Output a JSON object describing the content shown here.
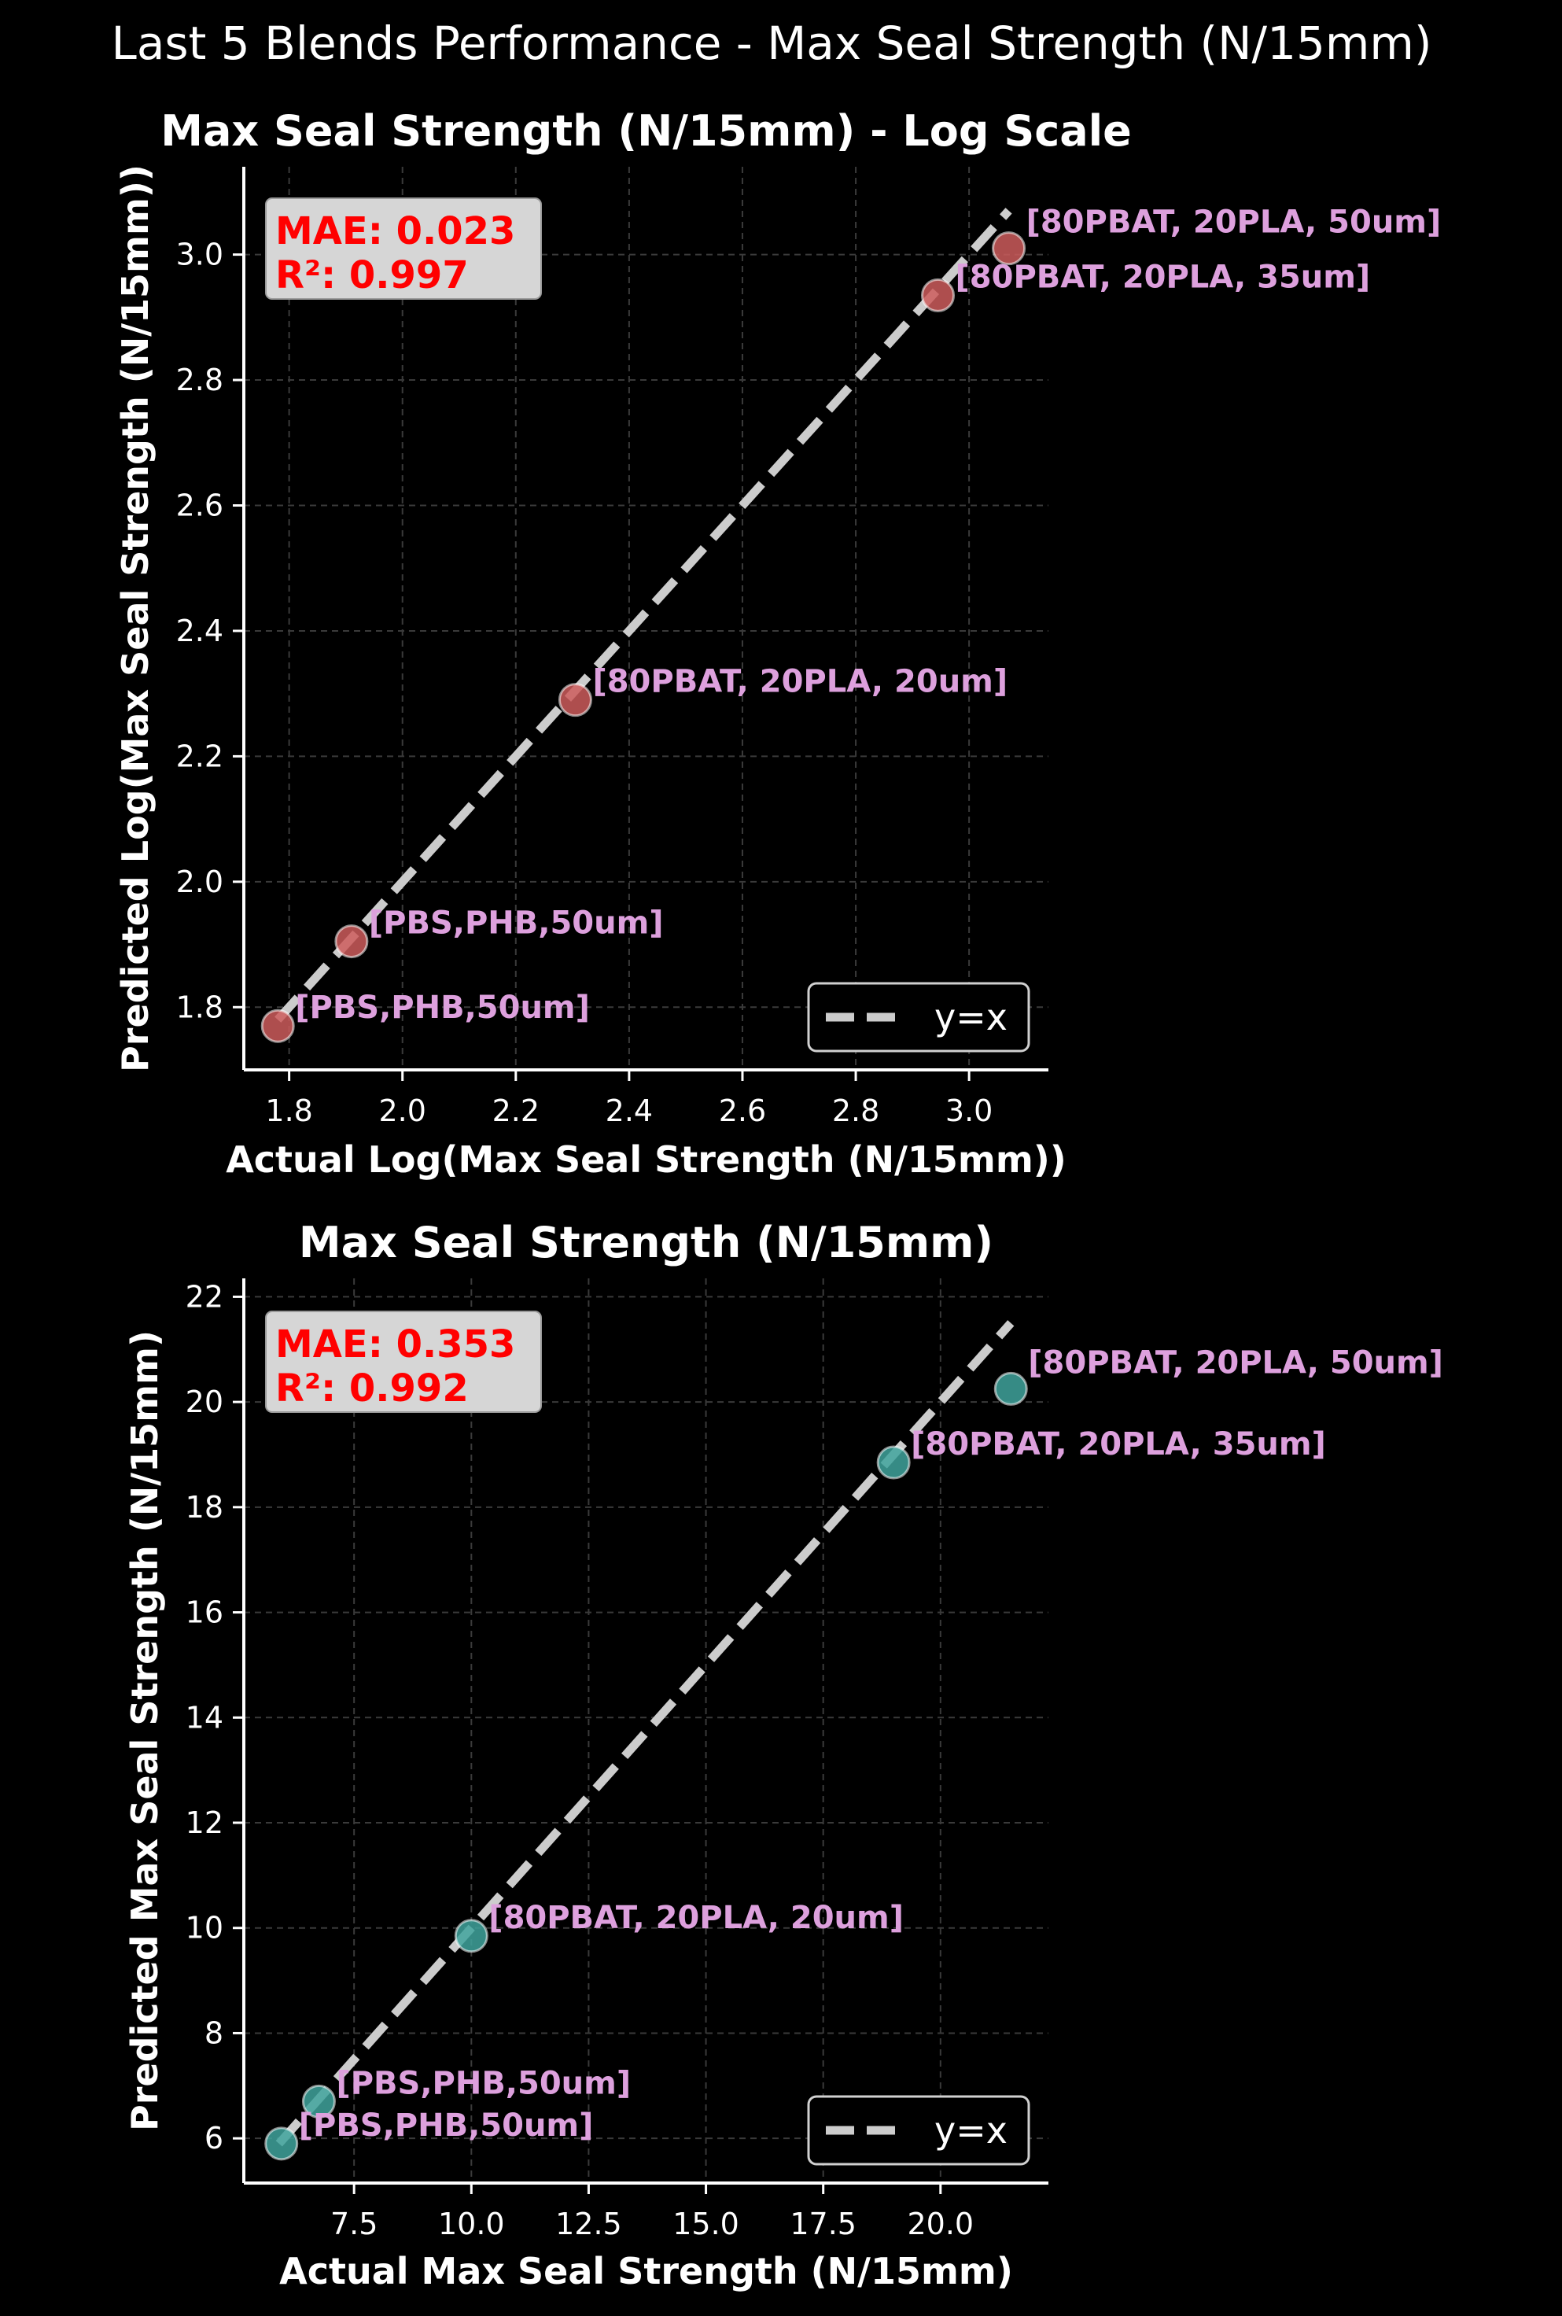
{
  "figure": {
    "suptitle": "Last 5 Blends Performance - Max Seal Strength (N/15mm)"
  },
  "colors": {
    "background": "#000000",
    "log_point": "#cd5c5c",
    "lin_point": "#3fa39c",
    "label": "#dda0dd",
    "metric": "#ff0000",
    "identity_line": "#cccccc"
  },
  "chart_data": [
    {
      "type": "scatter",
      "title": "Max Seal Strength (N/15mm) - Log Scale",
      "xlabel": "Actual Log(Max Seal Strength (N/15mm))",
      "ylabel": "Predicted Log(Max Seal Strength (N/15mm))",
      "xlim": [
        1.72,
        3.14
      ],
      "ylim": [
        1.7,
        3.14
      ],
      "xticks": [
        1.8,
        2.0,
        2.2,
        2.4,
        2.6,
        2.8,
        3.0
      ],
      "yticks": [
        1.8,
        2.0,
        2.2,
        2.4,
        2.6,
        2.8,
        3.0
      ],
      "tick_decimals": 1,
      "grid": true,
      "legend": {
        "location": "lower-right",
        "label": "y=x"
      },
      "identity_line": [
        1.78,
        3.07
      ],
      "metrics": {
        "mae": "MAE: 0.023",
        "r2": "R²: 0.997"
      },
      "points": [
        {
          "x": 1.78,
          "y": 1.77,
          "label": "[PBS,PHB,50um]"
        },
        {
          "x": 1.91,
          "y": 1.905,
          "label": "[PBS,PHB,50um]"
        },
        {
          "x": 2.305,
          "y": 2.29,
          "label": "[80PBAT, 20PLA, 20um]"
        },
        {
          "x": 2.945,
          "y": 2.935,
          "label": "[80PBAT, 20PLA, 35um]"
        },
        {
          "x": 3.07,
          "y": 3.01,
          "label": "[80PBAT, 20PLA, 50um]"
        }
      ]
    },
    {
      "type": "scatter",
      "title": "Max Seal Strength (N/15mm)",
      "xlabel": "Actual Max Seal Strength (N/15mm)",
      "ylabel": "Predicted Max Seal Strength (N/15mm)",
      "xlim": [
        5.15,
        22.3
      ],
      "ylim": [
        5.15,
        22.35
      ],
      "xticks": [
        7.5,
        10.0,
        12.5,
        15.0,
        17.5,
        20.0
      ],
      "yticks": [
        6,
        8,
        10,
        12,
        14,
        16,
        18,
        20,
        22
      ],
      "tick_decimals": [
        1,
        0
      ],
      "grid": true,
      "legend": {
        "location": "lower-right",
        "label": "y=x"
      },
      "identity_line": [
        5.9,
        21.5
      ],
      "metrics": {
        "mae": "MAE: 0.353",
        "r2": "R²: 0.992"
      },
      "points": [
        {
          "x": 5.95,
          "y": 5.9,
          "label": "[PBS,PHB,50um]"
        },
        {
          "x": 6.75,
          "y": 6.7,
          "label": "[PBS,PHB,50um]"
        },
        {
          "x": 10.0,
          "y": 9.85,
          "label": "[80PBAT, 20PLA, 20um]"
        },
        {
          "x": 19.0,
          "y": 18.85,
          "label": "[80PBAT, 20PLA, 35um]"
        },
        {
          "x": 21.5,
          "y": 20.25,
          "label": "[80PBAT, 20PLA, 50um]"
        }
      ]
    }
  ]
}
